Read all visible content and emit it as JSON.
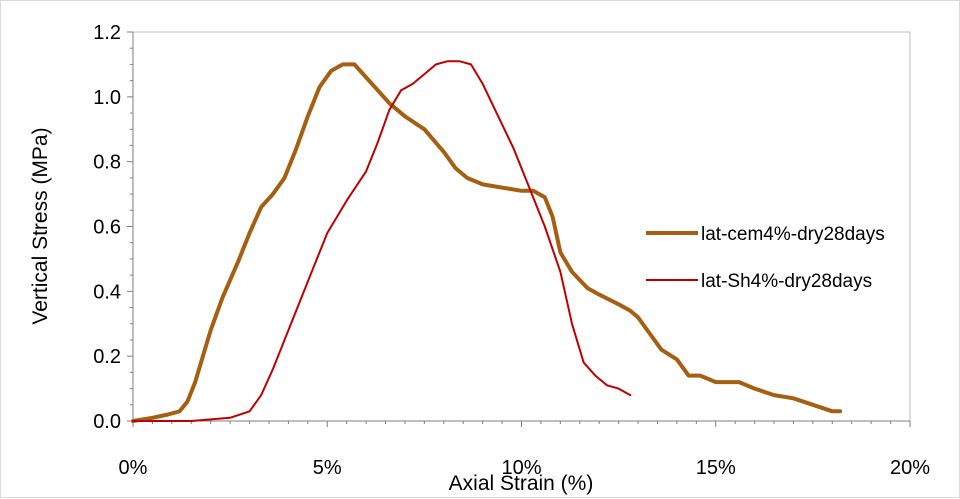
{
  "chart_data": {
    "type": "line",
    "title": "",
    "xlabel": "Axial Strain (%)",
    "ylabel": "Vertical Stress (MPa)",
    "xlim": [
      0,
      20
    ],
    "ylim": [
      0,
      1.2
    ],
    "x_ticks": [
      "0%",
      "5%",
      "10%",
      "15%",
      "20%"
    ],
    "y_ticks": [
      "0.0",
      "0.2",
      "0.4",
      "0.6",
      "0.8",
      "1.0",
      "1.2"
    ],
    "grid": false,
    "legend_position": "right",
    "series": [
      {
        "name": "lat-cem4%-dry28days",
        "color": "#a65f11",
        "x": [
          0,
          0.5,
          0.9,
          1.2,
          1.4,
          1.6,
          1.8,
          2.0,
          2.3,
          2.7,
          3.0,
          3.3,
          3.6,
          3.9,
          4.2,
          4.5,
          4.8,
          5.1,
          5.4,
          5.7,
          6.0,
          6.3,
          6.6,
          7.0,
          7.5,
          8.0,
          8.3,
          8.6,
          9.0,
          9.5,
          10.0,
          10.3,
          10.6,
          10.8,
          11.0,
          11.3,
          11.7,
          12.0,
          12.5,
          12.8,
          13.0,
          13.3,
          13.6,
          14.0,
          14.3,
          14.6,
          15.0,
          15.3,
          15.6,
          16.0,
          16.5,
          17.0,
          17.5,
          18.0,
          18.2
        ],
        "values": [
          0.0,
          0.01,
          0.02,
          0.03,
          0.06,
          0.12,
          0.2,
          0.28,
          0.38,
          0.49,
          0.58,
          0.66,
          0.7,
          0.75,
          0.84,
          0.94,
          1.03,
          1.08,
          1.1,
          1.1,
          1.06,
          1.02,
          0.98,
          0.94,
          0.9,
          0.83,
          0.78,
          0.75,
          0.73,
          0.72,
          0.71,
          0.71,
          0.69,
          0.63,
          0.52,
          0.46,
          0.41,
          0.39,
          0.36,
          0.34,
          0.32,
          0.27,
          0.22,
          0.19,
          0.14,
          0.14,
          0.12,
          0.12,
          0.12,
          0.1,
          0.08,
          0.07,
          0.05,
          0.03,
          0.03
        ]
      },
      {
        "name": "lat-Sh4%-dry28days",
        "color": "#c00000",
        "x": [
          0,
          1.5,
          2.5,
          3.0,
          3.3,
          3.6,
          4.0,
          4.5,
          5.0,
          5.5,
          6.0,
          6.3,
          6.6,
          6.9,
          7.2,
          7.5,
          7.8,
          8.1,
          8.4,
          8.7,
          9.0,
          9.4,
          9.8,
          10.2,
          10.6,
          11.0,
          11.3,
          11.6,
          11.9,
          12.2,
          12.5,
          12.8
        ],
        "values": [
          0.0,
          0.0,
          0.01,
          0.03,
          0.08,
          0.16,
          0.28,
          0.43,
          0.58,
          0.68,
          0.77,
          0.86,
          0.96,
          1.02,
          1.04,
          1.07,
          1.1,
          1.11,
          1.11,
          1.1,
          1.04,
          0.94,
          0.84,
          0.72,
          0.6,
          0.46,
          0.3,
          0.18,
          0.14,
          0.11,
          0.1,
          0.08
        ]
      }
    ]
  }
}
